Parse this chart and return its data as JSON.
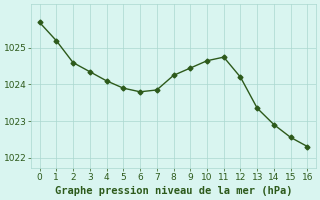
{
  "x": [
    0,
    1,
    2,
    3,
    4,
    5,
    6,
    7,
    8,
    9,
    10,
    11,
    12,
    13,
    14,
    15,
    16
  ],
  "y": [
    1025.7,
    1025.2,
    1024.6,
    1024.35,
    1024.1,
    1023.9,
    1023.8,
    1023.85,
    1024.25,
    1024.45,
    1024.65,
    1024.75,
    1024.2,
    1023.35,
    1022.9,
    1022.55,
    1022.3
  ],
  "line_color": "#2d5a1b",
  "marker": "D",
  "marker_size": 2.5,
  "bg_color": "#d9f5f0",
  "grid_color": "#aad8d0",
  "xlabel": "Graphe pression niveau de la mer (hPa)",
  "ylabel": "",
  "xlim": [
    -0.5,
    16.5
  ],
  "ylim": [
    1021.7,
    1026.2
  ],
  "yticks": [
    1022,
    1023,
    1024,
    1025
  ],
  "xticks": [
    0,
    1,
    2,
    3,
    4,
    5,
    6,
    7,
    8,
    9,
    10,
    11,
    12,
    13,
    14,
    15,
    16
  ],
  "xlabel_fontsize": 7.5,
  "tick_fontsize": 6.5,
  "tick_color": "#2d5a1b",
  "linewidth": 1.0
}
